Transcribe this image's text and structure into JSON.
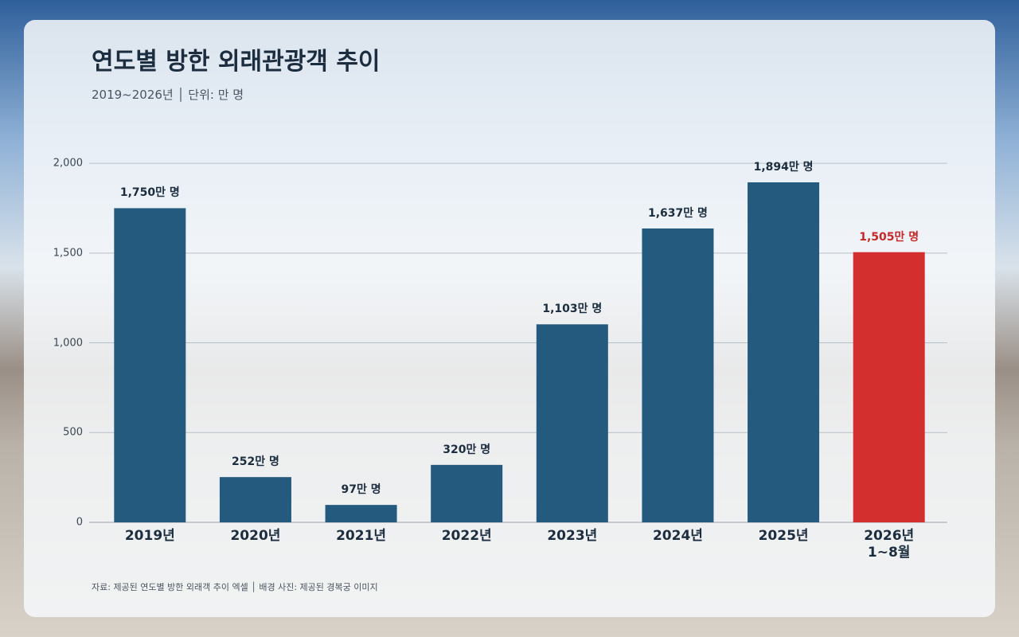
{
  "chart_data": {
    "type": "bar",
    "title": "연도별 방한 외래관광객 추이",
    "subtitle": "2019~2026년 │ 단위: 만 명",
    "footer": "자료: 제공된 연도별 방한 외래객 추이 엑셀 │ 배경 사진: 제공된 경복궁 이미지",
    "categories": [
      "2019년",
      "2020년",
      "2021년",
      "2022년",
      "2023년",
      "2024년",
      "2025년",
      "2026년\n1~8월"
    ],
    "values": [
      1750,
      252,
      97,
      320,
      1103,
      1637,
      1894,
      1505
    ],
    "value_labels": [
      "1,750만 명",
      "252만 명",
      "97만 명",
      "320만 명",
      "1,103만 명",
      "1,637만 명",
      "1,894만 명",
      "1,505만 명"
    ],
    "colors": [
      "#245a7e",
      "#245a7e",
      "#245a7e",
      "#245a7e",
      "#245a7e",
      "#245a7e",
      "#245a7e",
      "#d32f2f"
    ],
    "label_colors": [
      "#1b2d3e",
      "#1b2d3e",
      "#1b2d3e",
      "#1b2d3e",
      "#1b2d3e",
      "#1b2d3e",
      "#1b2d3e",
      "#c62828"
    ],
    "ylim": [
      0,
      2200
    ],
    "yticks": [
      0,
      500,
      {
        "value": 1000,
        "label": "1,000"
      },
      {
        "value": 1500,
        "label": "1,500"
      },
      {
        "value": 2000,
        "label": "2,000"
      }
    ],
    "grid": true
  }
}
